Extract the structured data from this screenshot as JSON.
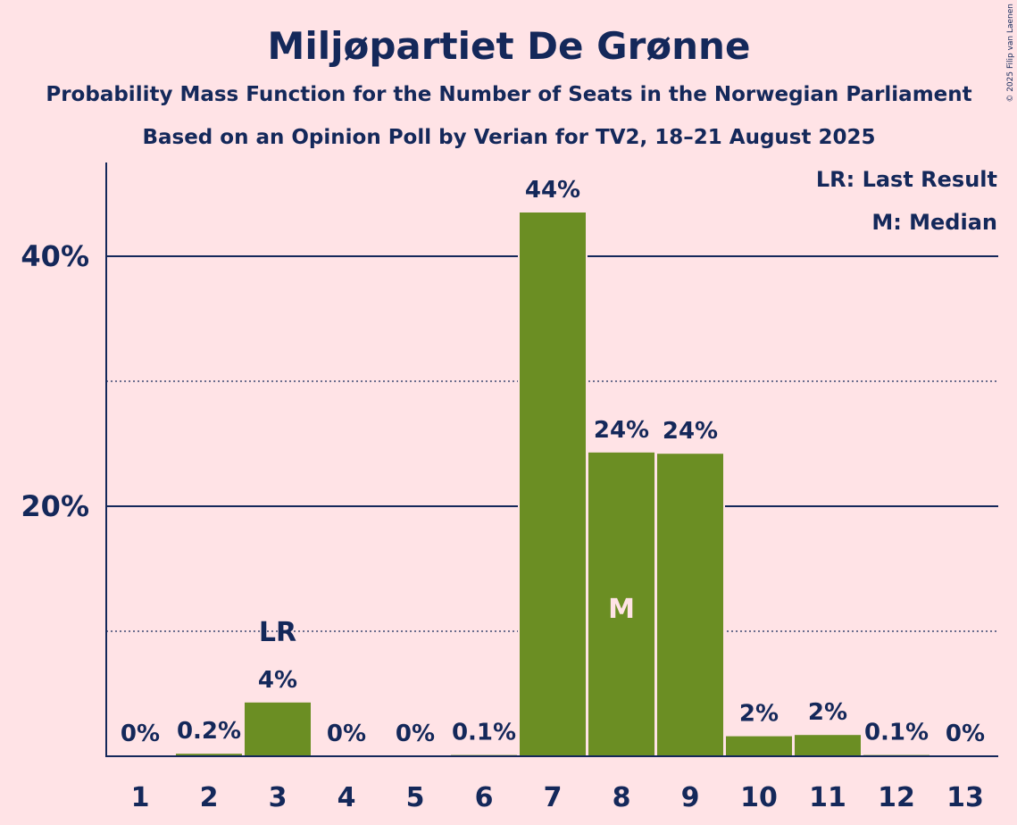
{
  "chart_data": {
    "type": "bar",
    "title": "Miljøpartiet De Grønne",
    "subtitle1": "Probability Mass Function for the Number of Seats in the Norwegian Parliament",
    "subtitle2": "Based on an Opinion Poll by Verian for TV2, 18–21 August 2025",
    "categories": [
      "1",
      "2",
      "3",
      "4",
      "5",
      "6",
      "7",
      "8",
      "9",
      "10",
      "11",
      "12",
      "13"
    ],
    "values": [
      0,
      0.2,
      4.3,
      0,
      0,
      0.1,
      43.5,
      24.3,
      24.2,
      1.6,
      1.7,
      0.1,
      0
    ],
    "data_labels": [
      "0%",
      "0.2%",
      "4%",
      "0%",
      "0%",
      "0.1%",
      "44%",
      "24%",
      "24%",
      "2%",
      "2%",
      "0.1%",
      "0%"
    ],
    "ylim": [
      0,
      47.5
    ],
    "yticks": [
      {
        "value": 20,
        "label": "20%"
      },
      {
        "value": 40,
        "label": "40%"
      }
    ],
    "minor_gridlines": [
      10,
      30
    ],
    "last_result": {
      "category": "3",
      "label": "LR"
    },
    "median": {
      "category": "8",
      "label": "M"
    },
    "legend": {
      "position": "top-right",
      "items": [
        "LR: Last Result",
        "M: Median"
      ]
    },
    "colors": {
      "bar": "#6b8e23",
      "text": "#14285a",
      "background": "#ffe3e6",
      "median_label": "#ffe3e6"
    }
  },
  "credit": "© 2025 Filip van Laenen"
}
